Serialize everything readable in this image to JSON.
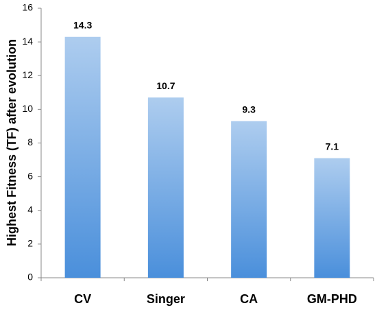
{
  "chart_data": {
    "type": "bar",
    "y_label": "Highest Fitness (TF) after evolution",
    "categories": [
      "CV",
      "Singer",
      "CA",
      "GM-PHD"
    ],
    "values": [
      14.3,
      10.7,
      9.3,
      7.1
    ],
    "color": "#4a8fdb",
    "ylim": [
      0,
      16
    ],
    "yticks": [
      0,
      2,
      4,
      6,
      8,
      10,
      12,
      14,
      16
    ],
    "grid": false
  }
}
